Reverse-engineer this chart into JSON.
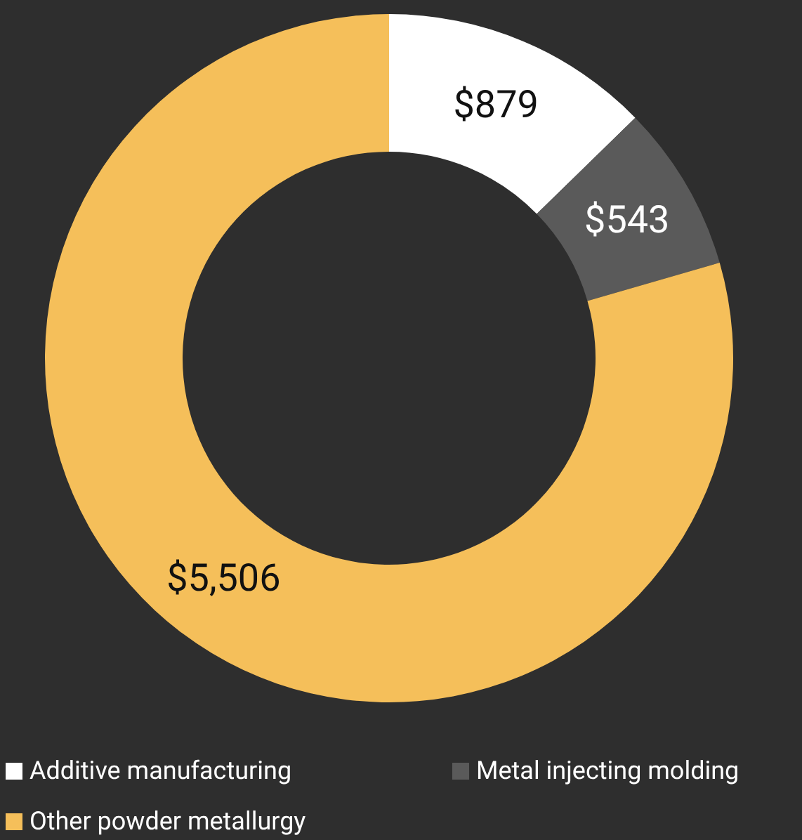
{
  "chart_data": {
    "type": "donut",
    "categories": [
      "Additive manufacturing",
      "Metal injecting molding",
      "Other powder metallurgy"
    ],
    "values": [
      879,
      543,
      5506
    ],
    "colors": [
      "#ffffff",
      "#5a5a5a",
      "#f5bf5a"
    ],
    "value_labels": [
      "$879",
      "$543",
      "$5,506"
    ],
    "legend": "bottom"
  }
}
